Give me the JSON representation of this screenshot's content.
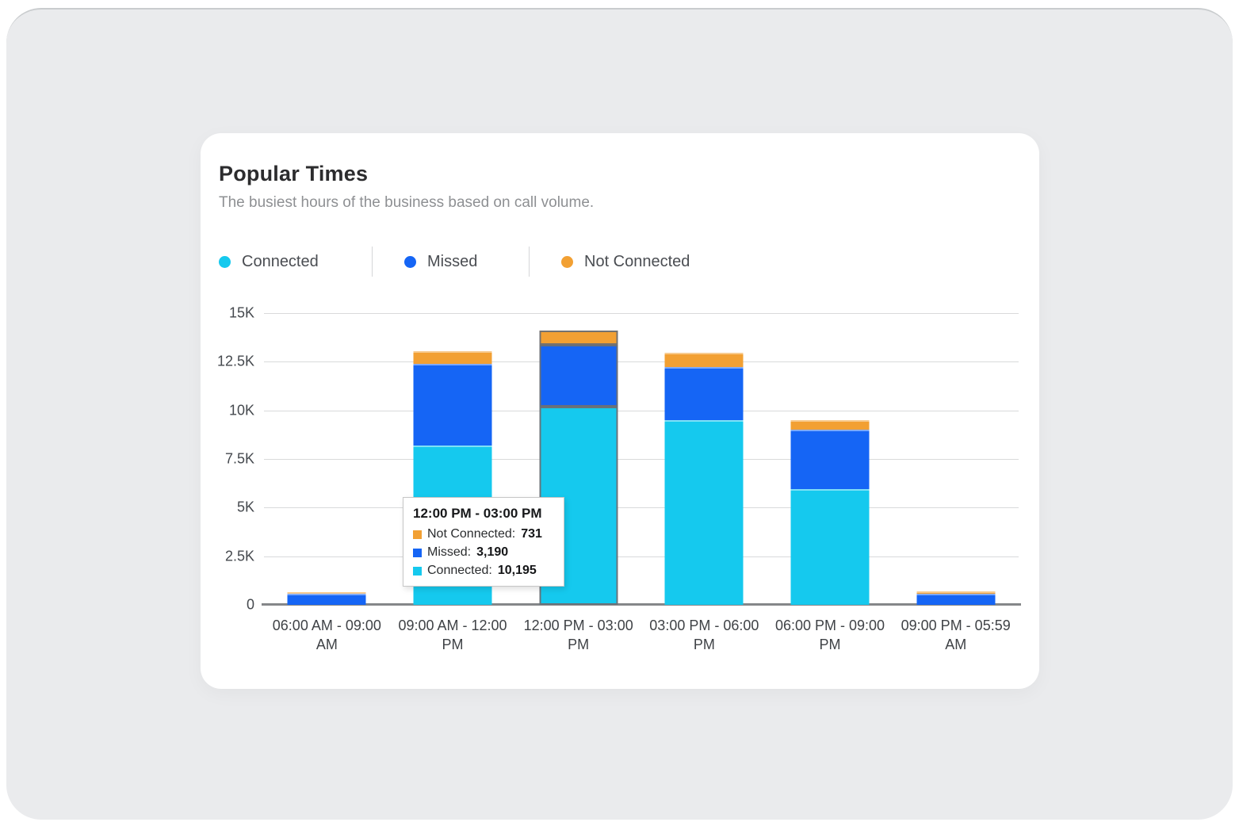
{
  "card": {
    "title": "Popular Times",
    "subtitle": "The busiest hours of the business based on call volume."
  },
  "legend": [
    {
      "label": "Connected",
      "color": "#15C9EE"
    },
    {
      "label": "Missed",
      "color": "#1565F5"
    },
    {
      "label": "Not Connected",
      "color": "#F2A033"
    }
  ],
  "chart_data": {
    "type": "bar",
    "stacked": true,
    "title": "Popular Times",
    "xlabel": "",
    "ylabel": "",
    "grid": true,
    "legend_position": "top",
    "ymax": 15000,
    "yticks": [
      "0",
      "2.5K",
      "5K",
      "7.5K",
      "10K",
      "12.5K",
      "15K"
    ],
    "categories": [
      "06:00 AM - 09:00 AM",
      "09:00 AM - 12:00 PM",
      "12:00 PM - 03:00 PM",
      "03:00 PM - 06:00 PM",
      "06:00 PM - 09:00 PM",
      "09:00 PM - 05:59 AM"
    ],
    "series": [
      {
        "name": "Connected",
        "color": "#15C9EE",
        "values": [
          0,
          8200,
          10195,
          9480,
          5940,
          0
        ]
      },
      {
        "name": "Missed",
        "color": "#1565F5",
        "values": [
          570,
          4200,
          3190,
          2750,
          3060,
          580
        ]
      },
      {
        "name": "Not Connected",
        "color": "#F2A033",
        "values": [
          90,
          650,
          731,
          730,
          510,
          95
        ]
      }
    ],
    "highlighted_category_index": 2
  },
  "tooltip": {
    "title": "12:00 PM - 03:00 PM",
    "rows": [
      {
        "label": "Not Connected",
        "value": "731",
        "color": "#F2A033"
      },
      {
        "label": "Missed",
        "value": "3,190",
        "color": "#1565F5"
      },
      {
        "label": "Connected",
        "value": "10,195",
        "color": "#15C9EE"
      }
    ]
  }
}
